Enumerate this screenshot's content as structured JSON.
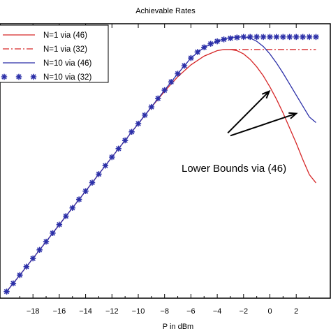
{
  "chart_data": {
    "type": "line",
    "title": "Achievable Rates",
    "xlabel": "P in dBm",
    "ylabel": "",
    "xlim": [
      -20,
      3.5
    ],
    "ylim": [
      0,
      1
    ],
    "x_ticks": [
      -18,
      -16,
      -14,
      -12,
      -10,
      -8,
      -6,
      -4,
      -2,
      0,
      2
    ],
    "grid": false,
    "legend_position": "top-left",
    "series": [
      {
        "name": "N=1 via (46)",
        "color": "#d62728",
        "style": "solid",
        "x": [
          -20,
          -19,
          -18,
          -17,
          -16,
          -15,
          -14,
          -13,
          -12,
          -11,
          -10,
          -9,
          -8,
          -7,
          -6,
          -5,
          -4,
          -3.5,
          -3,
          -2.5,
          -2,
          -1.5,
          -1,
          -0.5,
          0,
          0.5,
          1,
          1.5,
          2,
          2.5,
          3,
          3.5
        ],
        "y": [
          0.024,
          0.084,
          0.145,
          0.206,
          0.268,
          0.329,
          0.39,
          0.452,
          0.514,
          0.575,
          0.636,
          0.696,
          0.754,
          0.807,
          0.85,
          0.882,
          0.902,
          0.906,
          0.906,
          0.902,
          0.89,
          0.87,
          0.843,
          0.81,
          0.77,
          0.725,
          0.675,
          0.62,
          0.565,
          0.505,
          0.45,
          0.42
        ]
      },
      {
        "name": "N=1 via (32)",
        "color": "#d62728",
        "style": "dashdot",
        "x": [
          -3,
          -2,
          -1,
          0,
          1,
          2,
          3,
          3.5
        ],
        "y": [
          0.906,
          0.906,
          0.906,
          0.906,
          0.906,
          0.906,
          0.906,
          0.906
        ]
      },
      {
        "name": "N=10 via (46)",
        "color": "#2b2fa8",
        "style": "solid",
        "x": [
          -20,
          -19,
          -18,
          -17,
          -16,
          -15,
          -14,
          -13,
          -12,
          -11,
          -10,
          -9,
          -8,
          -7,
          -6,
          -5,
          -4,
          -3.5,
          -3,
          -2.5,
          -2,
          -1.5,
          -1,
          -0.5,
          0,
          0.5,
          1,
          1.5,
          2,
          2.5,
          3,
          3.5
        ],
        "y": [
          0.024,
          0.084,
          0.145,
          0.206,
          0.268,
          0.329,
          0.39,
          0.452,
          0.514,
          0.575,
          0.636,
          0.697,
          0.758,
          0.818,
          0.875,
          0.914,
          0.936,
          0.945,
          0.95,
          0.952,
          0.952,
          0.948,
          0.936,
          0.917,
          0.89,
          0.857,
          0.82,
          0.78,
          0.74,
          0.7,
          0.66,
          0.64
        ]
      },
      {
        "name": "N=10 via (32)",
        "color": "#2b2fa8",
        "style": "markers",
        "x": [
          -20,
          -19.5,
          -19,
          -18.5,
          -18,
          -17.5,
          -17,
          -16.5,
          -16,
          -15.5,
          -15,
          -14.5,
          -14,
          -13.5,
          -13,
          -12.5,
          -12,
          -11.5,
          -11,
          -10.5,
          -10,
          -9.5,
          -9,
          -8.5,
          -8,
          -7.5,
          -7,
          -6.5,
          -6,
          -5.5,
          -5,
          -4.5,
          -4,
          -3.5,
          -3,
          -2.5,
          -2,
          -1.5,
          -1,
          -0.5,
          0,
          0.5,
          1,
          1.5,
          2,
          2.5,
          3,
          3.5
        ],
        "y": [
          0.024,
          0.054,
          0.084,
          0.115,
          0.145,
          0.176,
          0.206,
          0.237,
          0.268,
          0.299,
          0.329,
          0.36,
          0.39,
          0.421,
          0.452,
          0.483,
          0.514,
          0.545,
          0.575,
          0.606,
          0.636,
          0.667,
          0.697,
          0.728,
          0.758,
          0.788,
          0.818,
          0.847,
          0.875,
          0.897,
          0.914,
          0.927,
          0.936,
          0.943,
          0.947,
          0.95,
          0.952,
          0.952,
          0.952,
          0.952,
          0.952,
          0.952,
          0.952,
          0.952,
          0.952,
          0.952,
          0.952,
          0.952
        ]
      }
    ],
    "annotation": {
      "text": "Lower Bounds via (46)",
      "arrows": [
        {
          "from": [
            -3.2,
            0.602
          ],
          "to": [
            -0.05,
            0.754
          ]
        },
        {
          "from": [
            -3.0,
            0.592
          ],
          "to": [
            2.0,
            0.673
          ]
        }
      ]
    }
  }
}
